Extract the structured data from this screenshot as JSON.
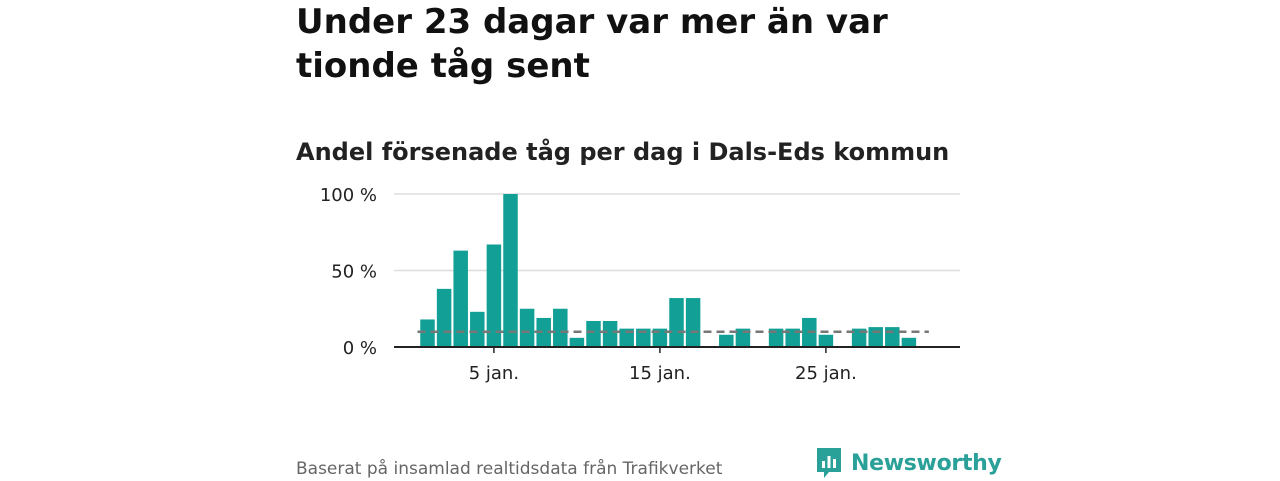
{
  "title": "Under 23 dagar var mer än var tionde tåg sent",
  "subtitle": "Andel försenade tåg per dag i Dals-Eds kommun",
  "footer": {
    "source": "Baserat på insamlad realtidsdata från Trafikverket",
    "brand": "Newsworthy"
  },
  "colors": {
    "bar": "#12a096",
    "reference_line": "#777777",
    "grid": "#dddddd",
    "axis": "#222222",
    "brand": "#2aa198"
  },
  "chart_data": {
    "type": "bar",
    "x": [
      1,
      2,
      3,
      4,
      5,
      6,
      7,
      8,
      9,
      10,
      11,
      12,
      13,
      14,
      15,
      16,
      17,
      18,
      19,
      20,
      21,
      22,
      23,
      24,
      25,
      26,
      27,
      28,
      29,
      30
    ],
    "values": [
      18,
      38,
      63,
      23,
      67,
      100,
      25,
      19,
      25,
      6,
      17,
      17,
      12,
      12,
      12,
      32,
      32,
      0,
      8,
      12,
      0,
      12,
      12,
      19,
      8,
      0,
      12,
      13,
      13,
      6
    ],
    "reference_value": 10,
    "y_ticks": [
      {
        "value": 0,
        "label": "0 %"
      },
      {
        "value": 50,
        "label": "50 %"
      },
      {
        "value": 100,
        "label": "100 %"
      }
    ],
    "x_ticks": [
      {
        "value": 5,
        "label": "5 jan."
      },
      {
        "value": 15,
        "label": "15 jan."
      },
      {
        "value": 25,
        "label": "25 jan."
      }
    ],
    "ylim": [
      0,
      100
    ],
    "grid": true
  }
}
